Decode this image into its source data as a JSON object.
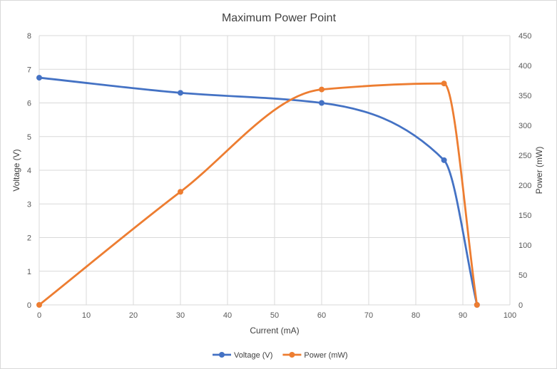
{
  "chart_data": {
    "type": "line",
    "title": "Maximum Power Point",
    "xlabel": "Current (mA)",
    "ylabel": "Voltage (V)",
    "y2label": "Power (mW)",
    "xlim": [
      0,
      100
    ],
    "ylim": [
      0,
      8
    ],
    "y2lim": [
      0,
      450
    ],
    "x_ticks": [
      0,
      10,
      20,
      30,
      40,
      50,
      60,
      70,
      80,
      90,
      100
    ],
    "y_ticks": [
      0,
      1,
      2,
      3,
      4,
      5,
      6,
      7,
      8
    ],
    "y2_ticks": [
      0,
      50,
      100,
      150,
      200,
      250,
      300,
      350,
      400,
      450
    ],
    "grid": true,
    "smooth": true,
    "legend_position": "bottom",
    "series": [
      {
        "name": "Voltage (V)",
        "axis": "left",
        "color": "#4472C4",
        "x": [
          0,
          30,
          60,
          86,
          93
        ],
        "values": [
          6.75,
          6.3,
          6.0,
          4.3,
          0
        ]
      },
      {
        "name": "Power (mW)",
        "axis": "right",
        "color": "#ED7D31",
        "x": [
          0,
          30,
          60,
          86,
          93
        ],
        "values": [
          0,
          189,
          360,
          370,
          0
        ]
      }
    ]
  }
}
